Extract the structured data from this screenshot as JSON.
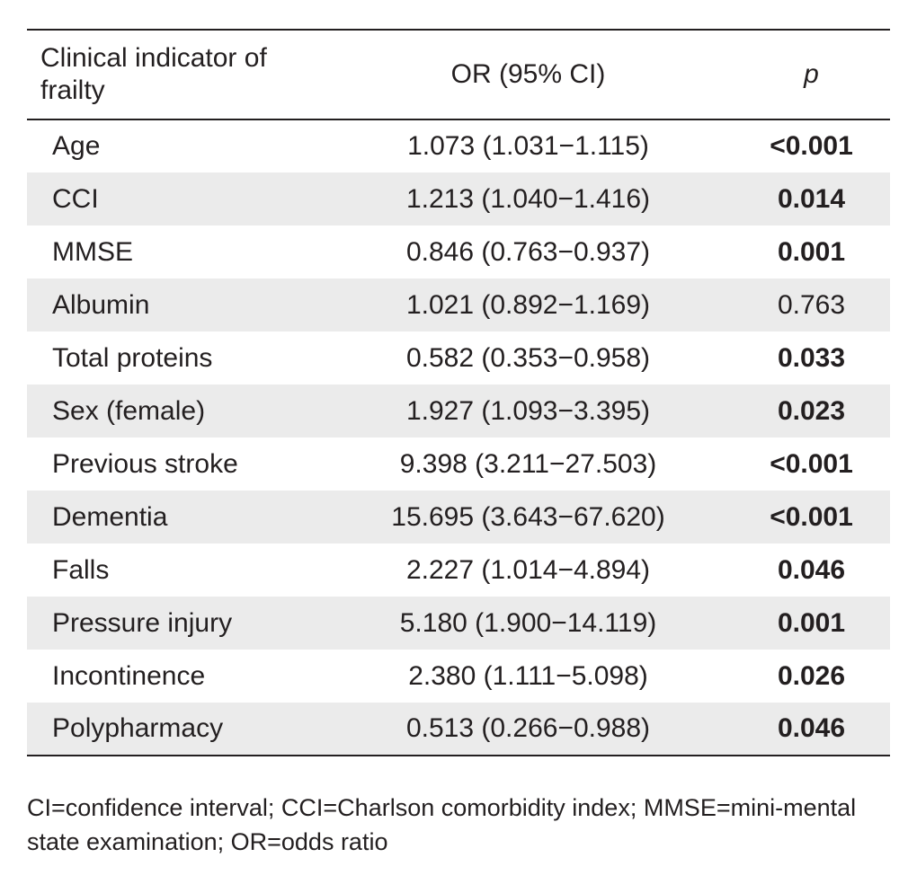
{
  "table": {
    "headers": {
      "indicator": "Clinical indicator of frailty",
      "or": "OR (95% CI)",
      "p": "p"
    },
    "rows": [
      {
        "indicator": "Age",
        "or": "1.073 (1.031−1.115)",
        "p": "<0.001",
        "significant": true
      },
      {
        "indicator": "CCI",
        "or": "1.213 (1.040−1.416)",
        "p": "0.014",
        "significant": true
      },
      {
        "indicator": "MMSE",
        "or": "0.846 (0.763−0.937)",
        "p": "0.001",
        "significant": true
      },
      {
        "indicator": "Albumin",
        "or": "1.021 (0.892−1.169)",
        "p": "0.763",
        "significant": false
      },
      {
        "indicator": "Total proteins",
        "or": "0.582 (0.353−0.958)",
        "p": "0.033",
        "significant": true
      },
      {
        "indicator": "Sex (female)",
        "or": "1.927 (1.093−3.395)",
        "p": "0.023",
        "significant": true
      },
      {
        "indicator": "Previous stroke",
        "or": "9.398 (3.211−27.503)",
        "p": "<0.001",
        "significant": true
      },
      {
        "indicator": "Dementia",
        "or": "15.695 (3.643−67.620)",
        "p": "<0.001",
        "significant": true
      },
      {
        "indicator": "Falls",
        "or": "2.227 (1.014−4.894)",
        "p": "0.046",
        "significant": true
      },
      {
        "indicator": "Pressure injury",
        "or": "5.180 (1.900−14.119)",
        "p": "0.001",
        "significant": true
      },
      {
        "indicator": "Incontinence",
        "or": "2.380 (1.111−5.098)",
        "p": "0.026",
        "significant": true
      },
      {
        "indicator": "Polypharmacy",
        "or": "0.513 (0.266−0.988)",
        "p": "0.046",
        "significant": true
      }
    ]
  },
  "footnote": "CI=confidence interval; CCI=Charlson comorbidity index; MMSE=mini-mental state examination; OR=odds ratio"
}
